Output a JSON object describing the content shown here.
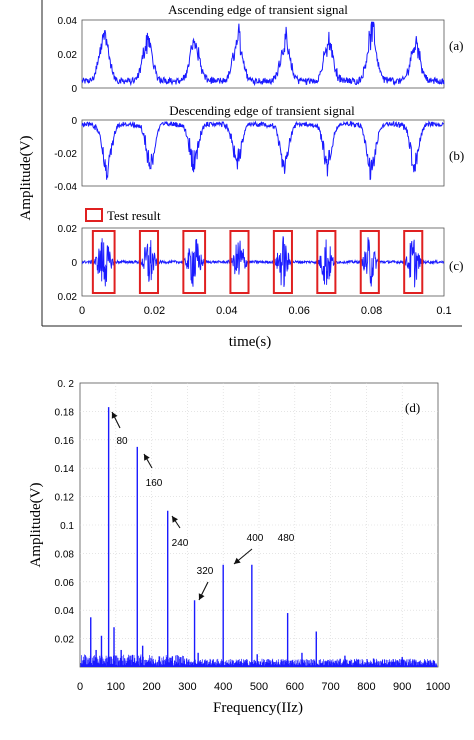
{
  "chart_data": [
    {
      "type": "line",
      "panel": "(a)",
      "title": "Ascending edge of transient signal",
      "xlim": [
        0,
        0.1
      ],
      "ylim": [
        0,
        0.04
      ],
      "yticks": [
        "0.04",
        "0.02",
        "0"
      ],
      "series": [
        {
          "values_description": "",
          "peak_times": [
            0.006,
            0.018,
            0.031,
            0.043,
            0.056,
            0.068,
            0.08,
            0.092
          ],
          "peak_values": [
            0.032,
            0.028,
            0.027,
            0.029,
            0.026,
            0.025,
            0.033,
            0.026
          ],
          "color": "#1a1aff"
        }
      ]
    },
    {
      "type": "line",
      "panel": "(b)",
      "title": "Descending edge of transient signal",
      "xlim": [
        0,
        0.1
      ],
      "ylim": [
        -0.04,
        0
      ],
      "yticks": [
        "0",
        "-0.02",
        "-0.04"
      ],
      "series": [
        {
          "peak_times": [
            0.007,
            0.019,
            0.031,
            0.043,
            0.056,
            0.068,
            0.08,
            0.092
          ],
          "peak_values": [
            -0.034,
            -0.028,
            -0.027,
            -0.025,
            -0.027,
            -0.025,
            -0.034,
            -0.028
          ],
          "color": "#1a1aff"
        }
      ]
    },
    {
      "type": "line",
      "panel": "(c)",
      "legend": "Test result",
      "xlim": [
        0,
        0.1
      ],
      "ylim": [
        -0.02,
        0.02
      ],
      "yticks": [
        "0.02",
        "0",
        "0.02"
      ],
      "xticks": [
        "0",
        "0.02",
        "0.04",
        "0.06",
        "0.08",
        "0.1"
      ],
      "xlabel": "time(s)",
      "ylabel": "Amplitude(V)",
      "burst_windows": [
        [
          0.003,
          0.009
        ],
        [
          0.016,
          0.021
        ],
        [
          0.028,
          0.034
        ],
        [
          0.041,
          0.046
        ],
        [
          0.053,
          0.058
        ],
        [
          0.065,
          0.07
        ],
        [
          0.077,
          0.082
        ],
        [
          0.089,
          0.094
        ]
      ],
      "color": "#1a1aff",
      "box_color": "#e02020"
    },
    {
      "type": "bar",
      "panel": "(d)",
      "xlabel": "Frequency(IIz)",
      "ylabel": "Amplitude(V)",
      "xlim": [
        0,
        1000
      ],
      "ylim": [
        0,
        0.2
      ],
      "xticks": [
        "0",
        "100",
        "200",
        "300",
        "400",
        "500",
        "600",
        "700",
        "800",
        "900",
        "1000"
      ],
      "yticks": [
        "0.02",
        "0.04",
        "0.06",
        "0.08",
        "0.1",
        "0.12",
        "0.14",
        "0.16",
        "0.18",
        "0. 2"
      ],
      "x": [
        30,
        45,
        60,
        80,
        95,
        115,
        140,
        160,
        175,
        245,
        320,
        330,
        400,
        480,
        495,
        580,
        620,
        660,
        740,
        820,
        900,
        980
      ],
      "values": [
        0.035,
        0.012,
        0.022,
        0.183,
        0.028,
        0.012,
        0.008,
        0.155,
        0.015,
        0.11,
        0.047,
        0.01,
        0.072,
        0.072,
        0.009,
        0.038,
        0.01,
        0.025,
        0.008,
        0.006,
        0.007,
        0.004
      ],
      "annotations": [
        {
          "text": "80",
          "x": 80
        },
        {
          "text": "160",
          "x": 160
        },
        {
          "text": "240",
          "x": 245
        },
        {
          "text": "320",
          "x": 330
        },
        {
          "text": "400",
          "x": 400
        },
        {
          "text": "480",
          "x": 480
        }
      ],
      "color": "#1a1aff"
    }
  ],
  "labels": {
    "a": "(a)",
    "b": "(b)",
    "c": "(c)",
    "d": "(d)"
  }
}
